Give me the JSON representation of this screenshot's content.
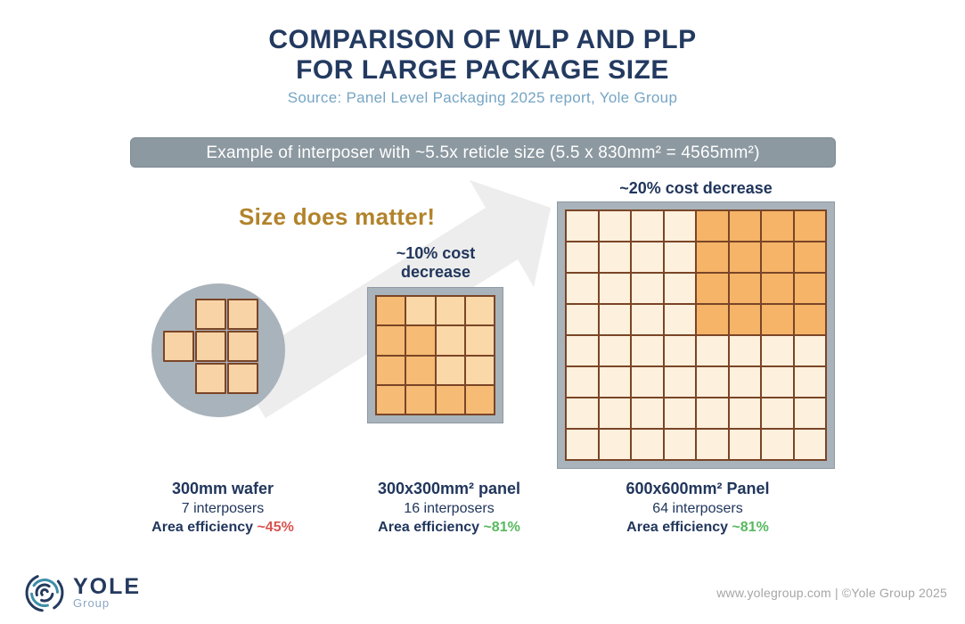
{
  "header": {
    "title_line1": "COMPARISON OF WLP AND PLP",
    "title_line2": "FOR LARGE PACKAGE SIZE",
    "source": "Source: Panel Level Packaging 2025 report, Yole Group"
  },
  "banner": {
    "text": "Example of interposer with ~5.5x reticle size (5.5 x 830mm² = 4565mm²)"
  },
  "tagline": {
    "text": "Size does matter!",
    "color": "#b2832b"
  },
  "colors": {
    "title_navy": "#233a60",
    "text_navy": "#21365c",
    "subtitle_blue": "#76a5c5",
    "banner_gray": "#8d99a1",
    "frame_gray": "#a9b3bb",
    "die_border_brown": "#7a4527",
    "arrow_gray": "#ededed",
    "efficiency_red": "#d9534f",
    "efficiency_green": "#57b95e"
  },
  "wafer": {
    "pattern": [
      "011",
      "111",
      "011"
    ],
    "cell_colors": {
      "1": "#f8d3a6"
    },
    "caption": {
      "title": "300mm wafer",
      "count": "7 interposers",
      "efficiency_label": "Area efficiency ",
      "efficiency_value": "~45%",
      "efficiency_color": "#d9534f"
    }
  },
  "panel300": {
    "cost_note": "~10% cost decrease",
    "pattern": [
      "dlll",
      "ddll",
      "ddll",
      "dddd"
    ],
    "cell_colors": {
      "d": "#f6bb74",
      "l": "#fbd8a7"
    },
    "caption": {
      "title": "300x300mm² panel",
      "count": "16 interposers",
      "efficiency_label": "Area efficiency ",
      "efficiency_value": "~81%",
      "efficiency_color": "#57b95e"
    }
  },
  "panel600": {
    "cost_note": "~20% cost decrease",
    "pattern": [
      "lllldddd",
      "lllldddd",
      "lllldddd",
      "lllldddd",
      "llllllll",
      "llllllll",
      "llllllll",
      "llllllll"
    ],
    "cell_colors": {
      "d": "#f5b468",
      "l": "#fdf0dc"
    },
    "caption": {
      "title": "600x600mm² Panel",
      "count": "64 interposers",
      "efficiency_label": "Area efficiency ",
      "efficiency_value": "~81%",
      "efficiency_color": "#57b95e"
    }
  },
  "footer": {
    "logo_name": "YOLE",
    "logo_sub": "Group",
    "credit": "www.yolegroup.com | ©Yole Group 2025"
  }
}
